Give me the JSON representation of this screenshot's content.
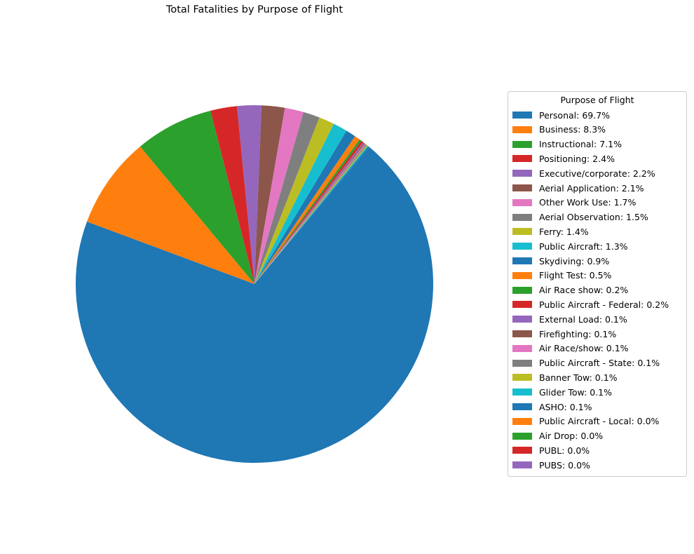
{
  "chart_data": {
    "type": "pie",
    "title": "Total Fatalities by Purpose of Flight",
    "legend_title": "Purpose of Flight",
    "legend_position": "right",
    "start_angle_deg": 50,
    "direction": "clockwise",
    "slices": [
      {
        "label": "Personal: 69.7%",
        "value": 69.7,
        "color": "#1f77b4"
      },
      {
        "label": "Business: 8.3%",
        "value": 8.3,
        "color": "#ff7f0e"
      },
      {
        "label": "Instructional: 7.1%",
        "value": 7.1,
        "color": "#2ca02c"
      },
      {
        "label": "Positioning: 2.4%",
        "value": 2.4,
        "color": "#d62728"
      },
      {
        "label": "Executive/corporate: 2.2%",
        "value": 2.2,
        "color": "#9467bd"
      },
      {
        "label": "Aerial Application: 2.1%",
        "value": 2.1,
        "color": "#8c564b"
      },
      {
        "label": "Other Work Use: 1.7%",
        "value": 1.7,
        "color": "#e377c2"
      },
      {
        "label": "Aerial Observation: 1.5%",
        "value": 1.5,
        "color": "#7f7f7f"
      },
      {
        "label": "Ferry: 1.4%",
        "value": 1.4,
        "color": "#bcbd22"
      },
      {
        "label": "Public Aircraft: 1.3%",
        "value": 1.3,
        "color": "#17becf"
      },
      {
        "label": "Skydiving: 0.9%",
        "value": 0.9,
        "color": "#1f77b4"
      },
      {
        "label": "Flight Test: 0.5%",
        "value": 0.5,
        "color": "#ff7f0e"
      },
      {
        "label": "Air Race show: 0.2%",
        "value": 0.2,
        "color": "#2ca02c"
      },
      {
        "label": "Public Aircraft - Federal: 0.2%",
        "value": 0.2,
        "color": "#d62728"
      },
      {
        "label": "External Load: 0.1%",
        "value": 0.1,
        "color": "#9467bd"
      },
      {
        "label": "Firefighting: 0.1%",
        "value": 0.1,
        "color": "#8c564b"
      },
      {
        "label": "Air Race/show: 0.1%",
        "value": 0.1,
        "color": "#e377c2"
      },
      {
        "label": "Public Aircraft - State: 0.1%",
        "value": 0.1,
        "color": "#7f7f7f"
      },
      {
        "label": "Banner Tow: 0.1%",
        "value": 0.1,
        "color": "#bcbd22"
      },
      {
        "label": "Glider Tow: 0.1%",
        "value": 0.1,
        "color": "#17becf"
      },
      {
        "label": "ASHO: 0.1%",
        "value": 0.1,
        "color": "#1f77b4"
      },
      {
        "label": "Public Aircraft - Local: 0.0%",
        "value": 0.0,
        "color": "#ff7f0e"
      },
      {
        "label": "Air Drop: 0.0%",
        "value": 0.0,
        "color": "#2ca02c"
      },
      {
        "label": "PUBL: 0.0%",
        "value": 0.0,
        "color": "#d62728"
      },
      {
        "label": "PUBS: 0.0%",
        "value": 0.0,
        "color": "#9467bd"
      }
    ]
  }
}
